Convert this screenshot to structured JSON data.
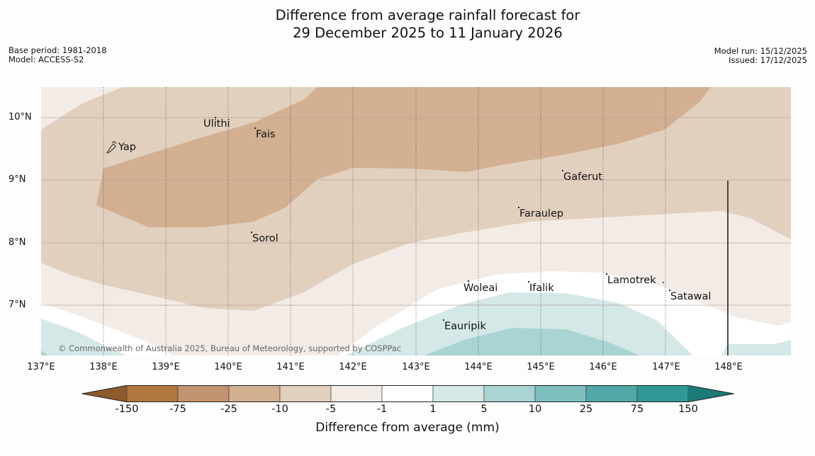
{
  "title": {
    "line1": "Difference from average rainfall forecast for",
    "line2": "29 December 2025 to 11 January 2026"
  },
  "meta_left": {
    "base_period": "Base period: 1981-2018",
    "model": "Model: ACCESS-S2"
  },
  "meta_right": {
    "model_run": "Model run: 15/12/2025",
    "issued": "Issued: 17/12/2025"
  },
  "map": {
    "lat_labels": [
      "10°N",
      "9°N",
      "8°N",
      "7°N"
    ],
    "lon_labels": [
      "137°E",
      "138°E",
      "139°E",
      "140°E",
      "141°E",
      "142°E",
      "143°E",
      "144°E",
      "145°E",
      "146°E",
      "147°E",
      "148°E"
    ],
    "places": [
      {
        "name": "Ulithi"
      },
      {
        "name": "Fais"
      },
      {
        "name": "Yap"
      },
      {
        "name": "Gaferut"
      },
      {
        "name": "Faraulep"
      },
      {
        "name": "Sorol"
      },
      {
        "name": "Lamotrek"
      },
      {
        "name": "Woleai"
      },
      {
        "name": "Ifalik"
      },
      {
        "name": "Satawal"
      },
      {
        "name": "Eauripik"
      }
    ],
    "copyright": "© Commonwealth of Australia 2025, Bureau of Meteorology, supported by COSPPac"
  },
  "colorbar": {
    "title": "Difference from average (mm)",
    "ticks": [
      "-150",
      "-75",
      "-25",
      "-10",
      "-5",
      "-1",
      "1",
      "5",
      "10",
      "25",
      "75",
      "150"
    ],
    "colors": [
      "#8d5a2c",
      "#b0773f",
      "#c29470",
      "#d2b091",
      "#e2d0bf",
      "#f3ece6",
      "#ffffff",
      "#d4e8e7",
      "#a9d4d3",
      "#7ebfbe",
      "#52a8a6",
      "#2e9995",
      "#1c7a77"
    ]
  }
}
